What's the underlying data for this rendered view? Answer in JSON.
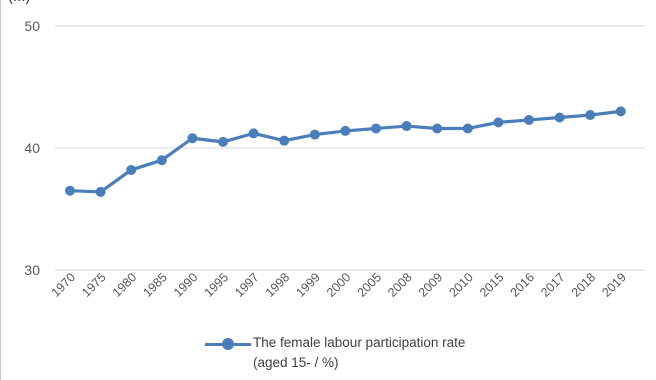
{
  "top_partial_text": "(...)",
  "chart_data": {
    "type": "line",
    "categories": [
      "1970",
      "1975",
      "1980",
      "1985",
      "1990",
      "1995",
      "1997",
      "1998",
      "1999",
      "2000",
      "2005",
      "2008",
      "2009",
      "2010",
      "2015",
      "2016",
      "2017",
      "2018",
      "2019"
    ],
    "series": [
      {
        "name": "The female labour participation rate (aged 15- / %)",
        "values": [
          36.5,
          36.4,
          38.2,
          39.0,
          40.8,
          40.5,
          41.2,
          40.6,
          41.1,
          41.4,
          41.6,
          41.8,
          41.6,
          41.6,
          42.1,
          42.3,
          42.5,
          42.7,
          43.0
        ],
        "color": "#4a7ebb"
      }
    ],
    "yticks": [
      "30",
      "40",
      "50"
    ],
    "ylim": [
      30,
      50
    ],
    "grid": true,
    "legend_position": "bottom"
  },
  "legend": {
    "line1": "The female labour participation rate",
    "line2": "(aged 15- / %)"
  },
  "colors": {
    "series": "#4a7ebb",
    "grid": "#d9d9d9",
    "text": "#595959"
  }
}
